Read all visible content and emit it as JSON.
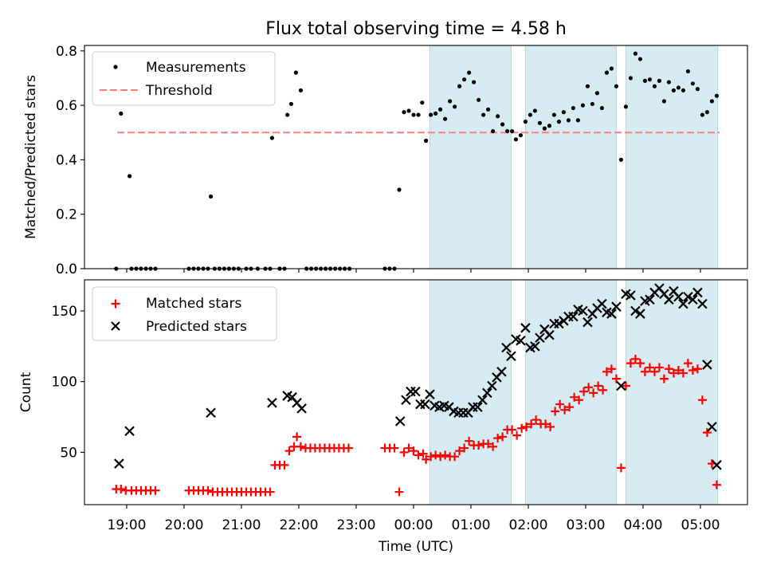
{
  "title": "Flux total observing time = 4.58 h",
  "xlabel": "Time (UTC)",
  "x_ticks": [
    "19:00",
    "20:00",
    "21:00",
    "22:00",
    "23:00",
    "00:00",
    "01:00",
    "02:00",
    "03:00",
    "04:00",
    "05:00"
  ],
  "colors": {
    "measurements": "#000000",
    "threshold": "#ff7f7f",
    "matched": "#ff0000",
    "predicted": "#000000",
    "shade": "#add8e6"
  },
  "chart_data": [
    {
      "type": "scatter",
      "ylabel": "Matched/Predicted stars",
      "ylim": [
        0,
        0.82
      ],
      "y_ticks": [
        "0.0",
        "0.2",
        "0.4",
        "0.6",
        "0.8"
      ],
      "legend": {
        "placement": "top-left",
        "measurements": "Measurements",
        "threshold": "Threshold"
      },
      "threshold": {
        "value": 0.5,
        "x_start": "18:50",
        "x_end": "05:20"
      },
      "observing_windows": [
        [
          "00:17",
          "01:42"
        ],
        [
          "01:57",
          "03:32"
        ],
        [
          "03:42",
          "05:18"
        ]
      ],
      "measurements": [
        [
          "18:49",
          0.0
        ],
        [
          "18:54",
          0.57
        ],
        [
          "19:03",
          0.34
        ],
        [
          "19:05",
          0.0
        ],
        [
          "19:10",
          0.0
        ],
        [
          "19:15",
          0.0
        ],
        [
          "19:20",
          0.0
        ],
        [
          "19:25",
          0.0
        ],
        [
          "19:30",
          0.0
        ],
        [
          "20:05",
          0.0
        ],
        [
          "20:10",
          0.0
        ],
        [
          "20:15",
          0.0
        ],
        [
          "20:20",
          0.0
        ],
        [
          "20:25",
          0.0
        ],
        [
          "20:28",
          0.265
        ],
        [
          "20:32",
          0.0
        ],
        [
          "20:37",
          0.0
        ],
        [
          "20:42",
          0.0
        ],
        [
          "20:47",
          0.0
        ],
        [
          "20:52",
          0.0
        ],
        [
          "20:57",
          0.0
        ],
        [
          "21:05",
          0.0
        ],
        [
          "21:10",
          0.0
        ],
        [
          "21:17",
          0.0
        ],
        [
          "21:25",
          0.0
        ],
        [
          "21:30",
          0.0
        ],
        [
          "21:32",
          0.48
        ],
        [
          "21:40",
          0.0
        ],
        [
          "21:45",
          0.0
        ],
        [
          "21:48",
          0.565
        ],
        [
          "21:52",
          0.605
        ],
        [
          "21:57",
          0.72
        ],
        [
          "22:02",
          0.655
        ],
        [
          "22:08",
          0.0
        ],
        [
          "22:13",
          0.0
        ],
        [
          "22:18",
          0.0
        ],
        [
          "22:23",
          0.0
        ],
        [
          "22:28",
          0.0
        ],
        [
          "22:33",
          0.0
        ],
        [
          "22:38",
          0.0
        ],
        [
          "22:43",
          0.0
        ],
        [
          "22:48",
          0.0
        ],
        [
          "22:53",
          0.0
        ],
        [
          "23:30",
          0.0
        ],
        [
          "23:35",
          0.0
        ],
        [
          "23:40",
          0.0
        ],
        [
          "23:45",
          0.29
        ],
        [
          "23:50",
          0.575
        ],
        [
          "23:55",
          0.58
        ],
        [
          "00:00",
          0.565
        ],
        [
          "00:05",
          0.565
        ],
        [
          "00:09",
          0.61
        ],
        [
          "00:13",
          0.47
        ],
        [
          "00:18",
          0.565
        ],
        [
          "00:23",
          0.57
        ],
        [
          "00:28",
          0.585
        ],
        [
          "00:33",
          0.55
        ],
        [
          "00:38",
          0.615
        ],
        [
          "00:43",
          0.595
        ],
        [
          "00:48",
          0.67
        ],
        [
          "00:53",
          0.695
        ],
        [
          "00:58",
          0.72
        ],
        [
          "01:03",
          0.685
        ],
        [
          "01:08",
          0.62
        ],
        [
          "01:13",
          0.565
        ],
        [
          "01:18",
          0.585
        ],
        [
          "01:23",
          0.505
        ],
        [
          "01:28",
          0.56
        ],
        [
          "01:33",
          0.53
        ],
        [
          "01:38",
          0.505
        ],
        [
          "01:43",
          0.505
        ],
        [
          "01:47",
          0.475
        ],
        [
          "01:52",
          0.49
        ],
        [
          "01:57",
          0.54
        ],
        [
          "02:02",
          0.565
        ],
        [
          "02:07",
          0.58
        ],
        [
          "02:12",
          0.535
        ],
        [
          "02:17",
          0.515
        ],
        [
          "02:22",
          0.525
        ],
        [
          "02:27",
          0.565
        ],
        [
          "02:32",
          0.54
        ],
        [
          "02:37",
          0.575
        ],
        [
          "02:42",
          0.545
        ],
        [
          "02:47",
          0.59
        ],
        [
          "02:52",
          0.545
        ],
        [
          "02:57",
          0.6
        ],
        [
          "03:02",
          0.67
        ],
        [
          "03:07",
          0.605
        ],
        [
          "03:12",
          0.645
        ],
        [
          "03:17",
          0.59
        ],
        [
          "03:22",
          0.72
        ],
        [
          "03:27",
          0.735
        ],
        [
          "03:32",
          0.67
        ],
        [
          "03:37",
          0.4
        ],
        [
          "03:42",
          0.595
        ],
        [
          "03:47",
          0.7
        ],
        [
          "03:52",
          0.79
        ],
        [
          "03:57",
          0.77
        ],
        [
          "04:02",
          0.69
        ],
        [
          "04:07",
          0.695
        ],
        [
          "04:12",
          0.67
        ],
        [
          "04:17",
          0.69
        ],
        [
          "04:22",
          0.615
        ],
        [
          "04:27",
          0.685
        ],
        [
          "04:32",
          0.655
        ],
        [
          "04:37",
          0.665
        ],
        [
          "04:42",
          0.655
        ],
        [
          "04:47",
          0.725
        ],
        [
          "04:52",
          0.68
        ],
        [
          "04:57",
          0.66
        ],
        [
          "05:02",
          0.565
        ],
        [
          "05:07",
          0.575
        ],
        [
          "05:12",
          0.615
        ],
        [
          "05:17",
          0.635
        ]
      ]
    },
    {
      "type": "scatter",
      "ylabel": "Count",
      "ylim": [
        13,
        172
      ],
      "y_ticks": [
        "50",
        "100",
        "150"
      ],
      "legend": {
        "placement": "top-left",
        "matched": "Matched stars",
        "predicted": "Predicted stars"
      },
      "observing_windows": [
        [
          "00:17",
          "01:42"
        ],
        [
          "01:57",
          "03:32"
        ],
        [
          "03:42",
          "05:18"
        ]
      ],
      "matched_stars": [
        [
          "18:49",
          24
        ],
        [
          "18:54",
          24
        ],
        [
          "18:59",
          23
        ],
        [
          "19:05",
          23
        ],
        [
          "19:10",
          23
        ],
        [
          "19:15",
          23
        ],
        [
          "19:20",
          23
        ],
        [
          "19:25",
          23
        ],
        [
          "19:30",
          23
        ],
        [
          "20:05",
          23
        ],
        [
          "20:10",
          23
        ],
        [
          "20:15",
          23
        ],
        [
          "20:20",
          23
        ],
        [
          "20:25",
          23
        ],
        [
          "20:30",
          22
        ],
        [
          "20:35",
          22
        ],
        [
          "20:40",
          22
        ],
        [
          "20:45",
          22
        ],
        [
          "20:50",
          22
        ],
        [
          "20:55",
          22
        ],
        [
          "21:00",
          22
        ],
        [
          "21:05",
          22
        ],
        [
          "21:10",
          22
        ],
        [
          "21:15",
          22
        ],
        [
          "21:20",
          22
        ],
        [
          "21:25",
          22
        ],
        [
          "21:30",
          22
        ],
        [
          "21:35",
          41
        ],
        [
          "21:40",
          41
        ],
        [
          "21:45",
          41
        ],
        [
          "21:50",
          51
        ],
        [
          "21:55",
          54
        ],
        [
          "21:58",
          61
        ],
        [
          "22:02",
          54
        ],
        [
          "22:07",
          53
        ],
        [
          "22:12",
          53
        ],
        [
          "22:17",
          53
        ],
        [
          "22:22",
          53
        ],
        [
          "22:27",
          53
        ],
        [
          "22:32",
          53
        ],
        [
          "22:37",
          53
        ],
        [
          "22:42",
          53
        ],
        [
          "22:47",
          53
        ],
        [
          "22:52",
          53
        ],
        [
          "23:30",
          53
        ],
        [
          "23:35",
          53
        ],
        [
          "23:40",
          53
        ],
        [
          "23:45",
          22
        ],
        [
          "23:50",
          50
        ],
        [
          "23:55",
          53
        ],
        [
          "00:00",
          51
        ],
        [
          "00:05",
          48
        ],
        [
          "00:10",
          49
        ],
        [
          "00:13",
          45
        ],
        [
          "00:18",
          47
        ],
        [
          "00:23",
          48
        ],
        [
          "00:28",
          47
        ],
        [
          "00:33",
          48
        ],
        [
          "00:38",
          47
        ],
        [
          "00:43",
          47
        ],
        [
          "00:48",
          51
        ],
        [
          "00:53",
          53
        ],
        [
          "00:58",
          58
        ],
        [
          "01:03",
          55
        ],
        [
          "01:08",
          55
        ],
        [
          "01:13",
          56
        ],
        [
          "01:18",
          56
        ],
        [
          "01:23",
          54
        ],
        [
          "01:28",
          60
        ],
        [
          "01:33",
          61
        ],
        [
          "01:38",
          66
        ],
        [
          "01:43",
          66
        ],
        [
          "01:48",
          62
        ],
        [
          "01:53",
          67
        ],
        [
          "01:58",
          68
        ],
        [
          "02:03",
          70
        ],
        [
          "02:08",
          73
        ],
        [
          "02:13",
          70
        ],
        [
          "02:18",
          70
        ],
        [
          "02:23",
          68
        ],
        [
          "02:28",
          79
        ],
        [
          "02:33",
          84
        ],
        [
          "02:38",
          80
        ],
        [
          "02:43",
          82
        ],
        [
          "02:48",
          89
        ],
        [
          "02:53",
          87
        ],
        [
          "02:58",
          93
        ],
        [
          "03:03",
          96
        ],
        [
          "03:08",
          92
        ],
        [
          "03:13",
          97
        ],
        [
          "03:18",
          94
        ],
        [
          "03:22",
          107
        ],
        [
          "03:27",
          109
        ],
        [
          "03:32",
          102
        ],
        [
          "03:37",
          39
        ],
        [
          "03:42",
          97
        ],
        [
          "03:47",
          113
        ],
        [
          "03:52",
          116
        ],
        [
          "03:57",
          113
        ],
        [
          "04:02",
          107
        ],
        [
          "04:07",
          110
        ],
        [
          "04:12",
          107
        ],
        [
          "04:17",
          110
        ],
        [
          "04:22",
          102
        ],
        [
          "04:27",
          109
        ],
        [
          "04:32",
          106
        ],
        [
          "04:37",
          108
        ],
        [
          "04:42",
          106
        ],
        [
          "04:47",
          113
        ],
        [
          "04:52",
          108
        ],
        [
          "04:57",
          109
        ],
        [
          "05:02",
          87
        ],
        [
          "05:07",
          64
        ],
        [
          "05:12",
          42
        ],
        [
          "05:17",
          27
        ]
      ],
      "predicted_stars": [
        [
          "18:52",
          42
        ],
        [
          "19:03",
          65
        ],
        [
          "20:28",
          78
        ],
        [
          "21:32",
          85
        ],
        [
          "21:48",
          90
        ],
        [
          "21:53",
          89
        ],
        [
          "21:58",
          85
        ],
        [
          "22:03",
          81
        ],
        [
          "23:46",
          72
        ],
        [
          "23:52",
          87
        ],
        [
          "23:57",
          93
        ],
        [
          "00:02",
          93
        ],
        [
          "00:07",
          84
        ],
        [
          "00:12",
          84
        ],
        [
          "00:17",
          91
        ],
        [
          "00:22",
          83
        ],
        [
          "00:27",
          82
        ],
        [
          "00:32",
          83
        ],
        [
          "00:37",
          82
        ],
        [
          "00:42",
          79
        ],
        [
          "00:47",
          78
        ],
        [
          "00:52",
          78
        ],
        [
          "00:57",
          78
        ],
        [
          "01:02",
          82
        ],
        [
          "01:07",
          82
        ],
        [
          "01:12",
          87
        ],
        [
          "01:17",
          92
        ],
        [
          "01:22",
          97
        ],
        [
          "01:27",
          103
        ],
        [
          "01:32",
          107
        ],
        [
          "01:37",
          124
        ],
        [
          "01:42",
          118
        ],
        [
          "01:47",
          130
        ],
        [
          "01:52",
          129
        ],
        [
          "01:57",
          138
        ],
        [
          "02:02",
          124
        ],
        [
          "02:07",
          125
        ],
        [
          "02:12",
          131
        ],
        [
          "02:17",
          137
        ],
        [
          "02:22",
          133
        ],
        [
          "02:27",
          141
        ],
        [
          "02:32",
          141
        ],
        [
          "02:37",
          143
        ],
        [
          "02:42",
          146
        ],
        [
          "02:47",
          146
        ],
        [
          "02:52",
          151
        ],
        [
          "02:57",
          150
        ],
        [
          "03:02",
          142
        ],
        [
          "03:07",
          148
        ],
        [
          "03:12",
          152
        ],
        [
          "03:17",
          155
        ],
        [
          "03:22",
          149
        ],
        [
          "03:27",
          148
        ],
        [
          "03:32",
          153
        ],
        [
          "03:37",
          97
        ],
        [
          "03:42",
          162
        ],
        [
          "03:47",
          161
        ],
        [
          "03:52",
          150
        ],
        [
          "03:57",
          148
        ],
        [
          "04:02",
          157
        ],
        [
          "04:07",
          158
        ],
        [
          "04:12",
          163
        ],
        [
          "04:17",
          166
        ],
        [
          "04:22",
          162
        ],
        [
          "04:27",
          158
        ],
        [
          "04:32",
          164
        ],
        [
          "04:37",
          160
        ],
        [
          "04:42",
          155
        ],
        [
          "04:47",
          160
        ],
        [
          "04:52",
          158
        ],
        [
          "04:57",
          163
        ],
        [
          "05:02",
          155
        ],
        [
          "05:07",
          112
        ],
        [
          "05:12",
          68
        ],
        [
          "05:17",
          41
        ]
      ]
    }
  ]
}
